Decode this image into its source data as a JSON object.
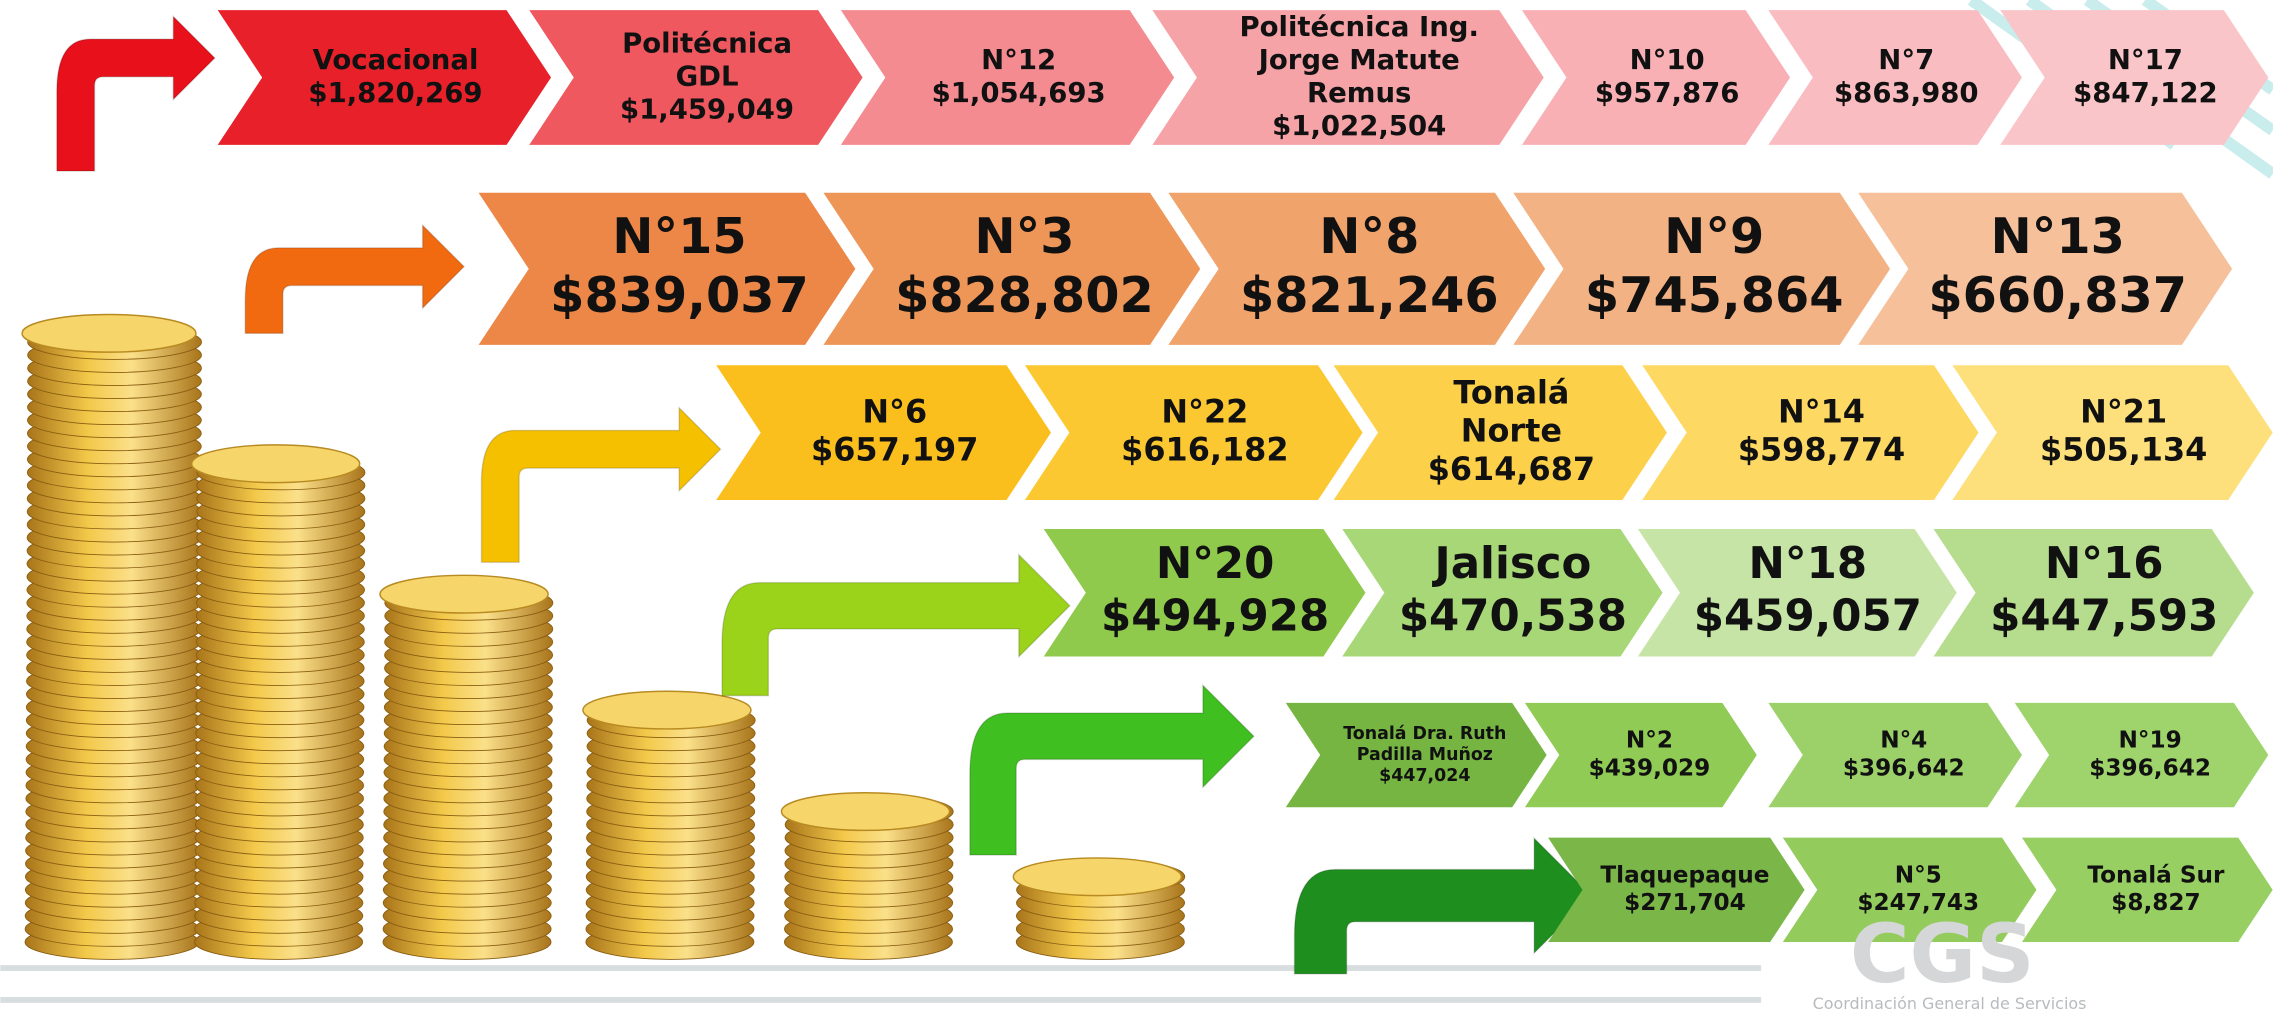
{
  "rows": [
    {
      "items": [
        {
          "lines": [
            "Vocacional",
            "$1,820,269"
          ],
          "color": "#e8202a"
        },
        {
          "lines": [
            "Politécnica",
            "GDL",
            "$1,459,049"
          ],
          "color": "#f0585f"
        },
        {
          "lines": [
            "N°12",
            "$1,054,693"
          ],
          "color": "#f48b91"
        },
        {
          "lines": [
            "Politécnica Ing.",
            "Jorge Matute",
            "Remus",
            "$1,022,504"
          ],
          "color": "#f6a3a8"
        },
        {
          "lines": [
            "N°10",
            "$957,876"
          ],
          "color": "#f8b0b5"
        },
        {
          "lines": [
            "N°7",
            "$863,980"
          ],
          "color": "#f9bcc0"
        },
        {
          "lines": [
            "N°17",
            "$847,122"
          ],
          "color": "#fac5c8"
        }
      ]
    },
    {
      "items": [
        {
          "lines": [
            "N°15",
            "$839,037"
          ],
          "color": "#ec8748"
        },
        {
          "lines": [
            "N°3",
            "$828,802"
          ],
          "color": "#ee9658"
        },
        {
          "lines": [
            "N°8",
            "$821,246"
          ],
          "color": "#f0a36b"
        },
        {
          "lines": [
            "N°9",
            "$745,864"
          ],
          "color": "#f3b283"
        },
        {
          "lines": [
            "N°13",
            "$660,837"
          ],
          "color": "#f5c09a"
        }
      ]
    },
    {
      "items": [
        {
          "lines": [
            "N°6",
            "$657,197"
          ],
          "color": "#fbbf1d"
        },
        {
          "lines": [
            "N°22",
            "$616,182"
          ],
          "color": "#fcc832"
        },
        {
          "lines": [
            "Tonalá",
            "Norte",
            "$614,687"
          ],
          "color": "#fdd04a"
        },
        {
          "lines": [
            "N°14",
            "$598,774"
          ],
          "color": "#fdd862"
        },
        {
          "lines": [
            "N°21",
            "$505,134"
          ],
          "color": "#fde07c"
        }
      ]
    },
    {
      "items": [
        {
          "lines": [
            "N°20",
            "$494,928"
          ],
          "color": "#8fca4c"
        },
        {
          "lines": [
            "Jalisco",
            "$470,538"
          ],
          "color": "#a8d777"
        },
        {
          "lines": [
            "N°18",
            "$459,057"
          ],
          "color": "#c5e4a5"
        },
        {
          "lines": [
            "N°16",
            "$447,593"
          ],
          "color": "#b6dd8d"
        }
      ]
    },
    {
      "items": [
        {
          "lines": [
            "Tonalá Dra. Ruth",
            "Padilla Muñoz",
            "$447,024"
          ],
          "color": "#77b543"
        },
        {
          "lines": [
            "N°2",
            "$439,029"
          ],
          "color": "#8fcb55"
        },
        {
          "lines": [
            "N°4",
            "$396,642"
          ],
          "color": "#9cd16a"
        },
        {
          "lines": [
            "N°19",
            "$396,642"
          ],
          "color": "#9fd46d"
        }
      ]
    },
    {
      "items": [
        {
          "lines": [
            "Tlaquepaque",
            "$271,704"
          ],
          "color": "#7ab648"
        },
        {
          "lines": [
            "N°5",
            "$247,743"
          ],
          "color": "#93cc5c"
        },
        {
          "lines": [
            "Tonalá Sur",
            "$8,827"
          ],
          "color": "#98cf62"
        }
      ]
    }
  ],
  "logo": {
    "mark": "CGS",
    "caption": "Coordinación General de Servicios"
  }
}
